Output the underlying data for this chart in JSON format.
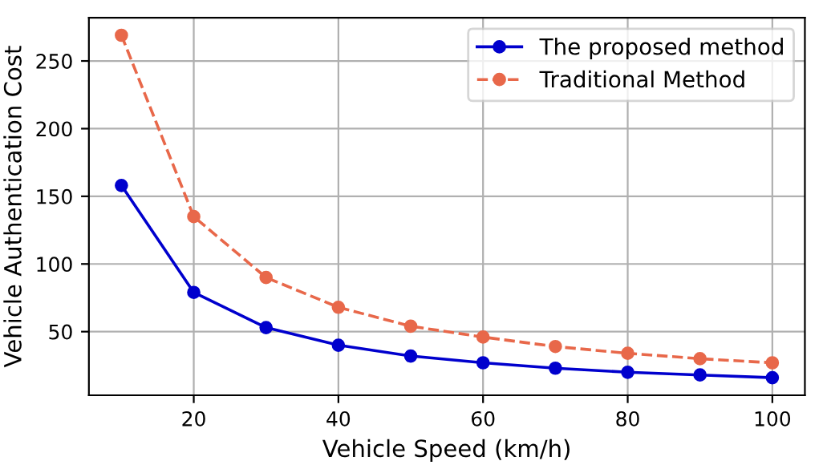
{
  "chart_data": {
    "type": "line",
    "xlabel": "Vehicle Speed (km/h)",
    "ylabel": "Vehicle Authentication Cost",
    "x": [
      10,
      20,
      30,
      40,
      50,
      60,
      70,
      80,
      90,
      100
    ],
    "series": [
      {
        "name": "The proposed method",
        "color": "#0000cd",
        "values": [
          158,
          79,
          53,
          40,
          32,
          27,
          23,
          20,
          18,
          16
        ],
        "line_style": "solid"
      },
      {
        "name": "Traditional Method",
        "color": "#e8684a",
        "values": [
          269,
          135,
          90,
          68,
          54,
          46,
          39,
          34,
          30,
          27
        ],
        "line_style": "dashed"
      }
    ],
    "marker": "circle",
    "xlim": [
      5.5,
      104.5
    ],
    "ylim": [
      3,
      282
    ],
    "xticks": [
      20,
      40,
      60,
      80,
      100
    ],
    "yticks": [
      50,
      100,
      150,
      200,
      250
    ],
    "grid": true,
    "legend": "top right"
  }
}
